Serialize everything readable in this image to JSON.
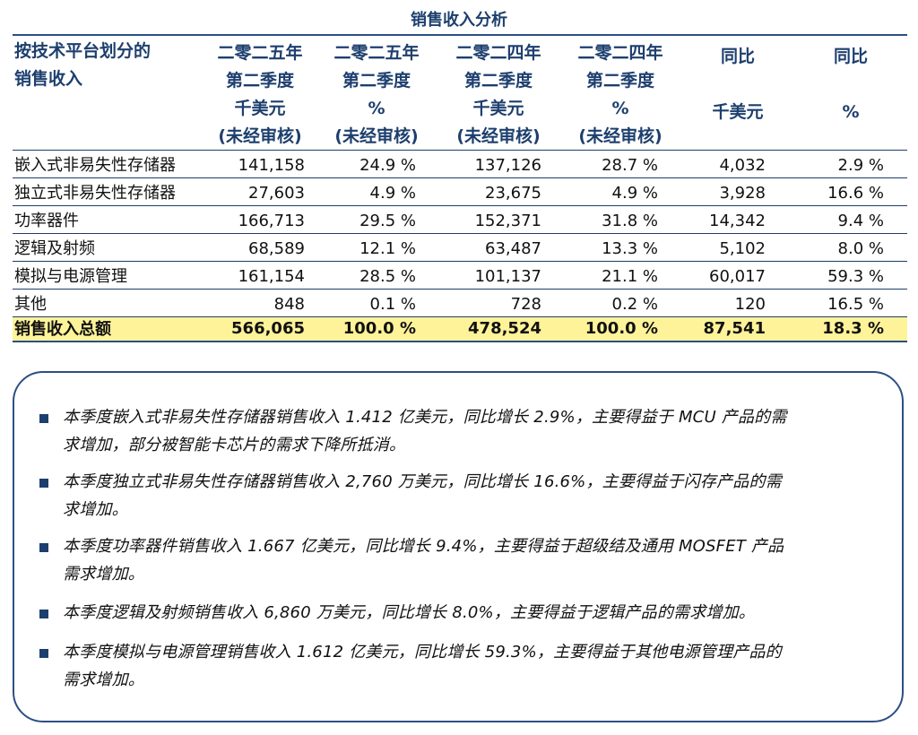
{
  "title": "销售收入分析",
  "headers": {
    "col0": [
      "按技术平台划分的",
      "销售收入"
    ],
    "col1": [
      "二零二五年",
      "第二季度",
      "千美元",
      "(未经审核)"
    ],
    "col2": [
      "二零二五年",
      "第二季度",
      "%",
      "(未经审核)"
    ],
    "col3": [
      "二零二四年",
      "第二季度",
      "千美元",
      "(未经审核)"
    ],
    "col4": [
      "二零二四年",
      "第二季度",
      "%",
      "(未经审核)"
    ],
    "col5": [
      "同比",
      "千美元"
    ],
    "col6": [
      "同比",
      "%"
    ]
  },
  "rows": [
    {
      "label": "嵌入式非易失性存储器",
      "v": [
        "141,158",
        "24.9 %",
        "137,126",
        "28.7 %",
        "4,032",
        "2.9 %"
      ]
    },
    {
      "label": "独立式非易失性存储器",
      "v": [
        "27,603",
        "4.9 %",
        "23,675",
        "4.9 %",
        "3,928",
        "16.6 %"
      ]
    },
    {
      "label": "功率器件",
      "v": [
        "166,713",
        "29.5 %",
        "152,371",
        "31.8 %",
        "14,342",
        "9.4 %"
      ]
    },
    {
      "label": "逻辑及射频",
      "v": [
        "68,589",
        "12.1 %",
        "63,487",
        "13.3 %",
        "5,102",
        "8.0 %"
      ]
    },
    {
      "label": "模拟与电源管理",
      "v": [
        "161,154",
        "28.5 %",
        "101,137",
        "21.1 %",
        "60,017",
        "59.3 %"
      ]
    },
    {
      "label": "其他",
      "v": [
        "848",
        "0.1 %",
        "728",
        "0.2 %",
        "120",
        "16.5 %"
      ]
    }
  ],
  "total": {
    "label": "销售收入总额",
    "v": [
      "566,065",
      "100.0 %",
      "478,524",
      "100.0 %",
      "87,541",
      "18.3 %"
    ]
  },
  "notes": [
    {
      "lines": [
        "本季度嵌入式非易失性存储器销售收入 1.412 亿美元，同比增长 2.9%，主要得益于 MCU 产品的需",
        "求增加，部分被智能卡芯片的需求下降所抵消。"
      ]
    },
    {
      "lines": [
        "本季度独立式非易失性存储器销售收入 2,760 万美元，同比增长 16.6%，主要得益于闪存产品的需",
        "求增加。"
      ]
    },
    {
      "lines": [
        "本季度功率器件销售收入 1.667 亿美元，同比增长 9.4%，主要得益于超级结及通用 MOSFET 产品",
        "需求增加。"
      ]
    },
    {
      "lines": [
        "本季度逻辑及射频销售收入 6,860 万美元，同比增长 8.0%，主要得益于逻辑产品的需求增加。"
      ]
    },
    {
      "lines": [
        "本季度模拟与电源管理销售收入 1.612 亿美元，同比增长 59.3%，主要得益于其他电源管理产品的",
        "需求增加。"
      ]
    }
  ],
  "colors": {
    "accent": "#1d3f6e",
    "highlight": "#fff39a"
  }
}
